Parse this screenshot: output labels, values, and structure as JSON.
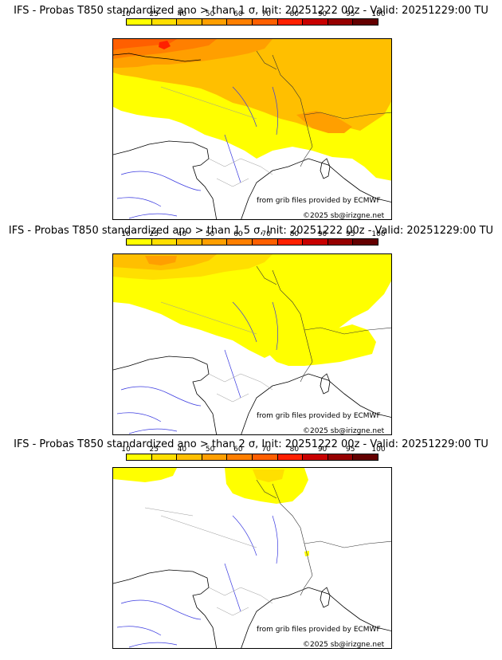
{
  "colorbar": {
    "ticks": [
      "10",
      "25",
      "40",
      "50",
      "60",
      "70",
      "80",
      "90",
      "95",
      "100"
    ],
    "colors": [
      "#ffff00",
      "#ffdf00",
      "#ffbf00",
      "#ff9f00",
      "#ff7f00",
      "#ff5f00",
      "#ff2000",
      "#c80000",
      "#960000",
      "#640000"
    ]
  },
  "panels": [
    {
      "title": "IFS - Probas T850  standardized ano > than 1 σ, Init: 20251222 00z - Valid: 20251229:00 TU",
      "credit_source": "from grib files provided by ECMWF",
      "credit_copyright": "©2025 sb@irizgne.net"
    },
    {
      "title": "IFS - Probas T850  standardized ano > than 1.5 σ, Init: 20251222 00z - Valid: 20251229:00 TU",
      "credit_source": "from grib files provided by ECMWF",
      "credit_copyright": "©2025 sb@irizgne.net"
    },
    {
      "title": "IFS - Probas T850  standardized ano > than 2 σ, Init: 20251222 00z - Valid: 20251229:00 TU",
      "credit_source": "from grib files provided by ECMWF",
      "credit_copyright": "©2025 sb@irizgne.net"
    }
  ]
}
